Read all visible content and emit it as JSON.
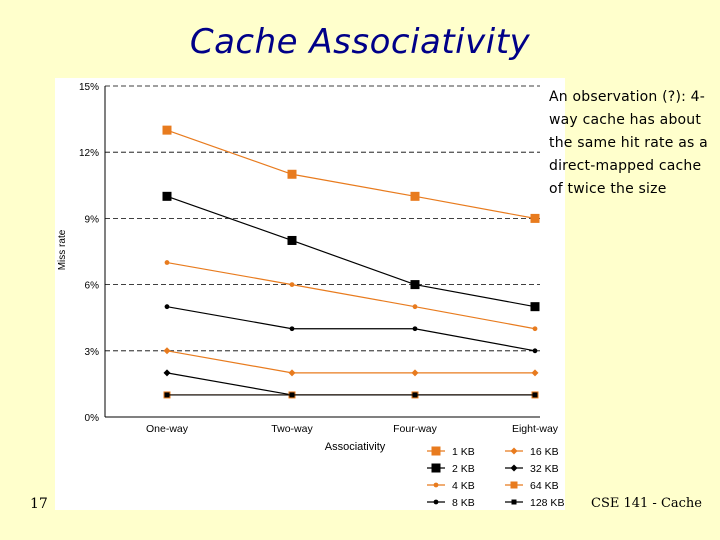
{
  "slide": {
    "title": "Cache Associativity",
    "observation": "An observation (?): 4-way cache has about the same hit rate as a direct-mapped cache of twice the size",
    "slide_number": "17",
    "footer": "CSE 141 - Cache"
  },
  "colors": {
    "background": "#ffffcc",
    "title": "#000088",
    "orange": "#e87b1e",
    "black": "#000000",
    "grid": "#000000"
  },
  "chart_data": {
    "type": "line",
    "xlabel": "Associativity",
    "ylabel": "Miss rate",
    "categories": [
      "One-way",
      "Two-way",
      "Four-way",
      "Eight-way"
    ],
    "y_ticks": [
      "0%",
      "3%",
      "6%",
      "9%",
      "12%",
      "15%"
    ],
    "ylim": [
      0,
      15
    ],
    "grid": "horizontal dashed",
    "legend_position": "bottom-right",
    "series": [
      {
        "name": "1 KB",
        "color": "#e87b1e",
        "marker": "square-large",
        "values": [
          13.0,
          11.0,
          10.0,
          9.0
        ]
      },
      {
        "name": "2 KB",
        "color": "#000000",
        "marker": "square-large",
        "values": [
          10.0,
          8.0,
          6.0,
          5.0
        ]
      },
      {
        "name": "4 KB",
        "color": "#e87b1e",
        "marker": "circle-small",
        "values": [
          7.0,
          6.0,
          5.0,
          4.0
        ]
      },
      {
        "name": "8 KB",
        "color": "#000000",
        "marker": "circle-small",
        "values": [
          5.0,
          4.0,
          4.0,
          3.0
        ]
      },
      {
        "name": "16 KB",
        "color": "#e87b1e",
        "marker": "diamond",
        "values": [
          3.0,
          2.0,
          2.0,
          2.0
        ]
      },
      {
        "name": "32 KB",
        "color": "#000000",
        "marker": "diamond",
        "values": [
          2.0,
          1.0,
          1.0,
          1.0
        ]
      },
      {
        "name": "64 KB",
        "color": "#e87b1e",
        "marker": "square-medium",
        "values": [
          1.0,
          1.0,
          1.0,
          1.0
        ]
      },
      {
        "name": "128 KB",
        "color": "#000000",
        "marker": "square-small",
        "values": [
          1.0,
          1.0,
          1.0,
          1.0
        ]
      }
    ]
  }
}
